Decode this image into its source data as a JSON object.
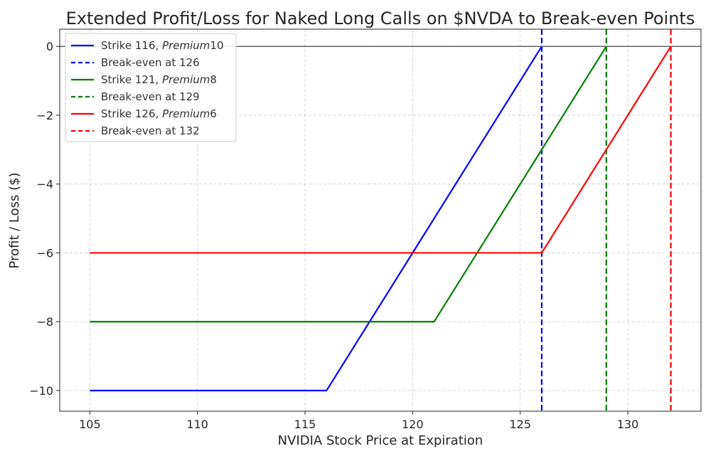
{
  "chart_data": {
    "type": "line",
    "title": "Extended Profit/Loss for Naked Long Calls on $NVDA to Break-even Points",
    "xlabel": "NVIDIA Stock Price at Expiration",
    "ylabel": "Profit / Loss ($)",
    "xlim": [
      103.6,
      133.4
    ],
    "ylim": [
      -10.6,
      0.5
    ],
    "xticks": [
      105,
      110,
      115,
      120,
      125,
      130
    ],
    "yticks": [
      0,
      -2,
      -4,
      -6,
      -8,
      -10
    ],
    "xtick_labels": [
      "105",
      "110",
      "115",
      "120",
      "125",
      "130"
    ],
    "ytick_labels": [
      "0",
      "−2",
      "−4",
      "−6",
      "−8",
      "−10"
    ],
    "grid": true,
    "legend_position": "top-left",
    "zero_line": 0,
    "series": [
      {
        "name": "Strike 116, Premium 10",
        "legend_prefix": "Strike 116, ",
        "legend_italic": "Premium",
        "legend_suffix": "10",
        "color": "#0000ff",
        "style": "solid",
        "x": [
          105,
          116,
          126
        ],
        "y": [
          -10,
          -10,
          0
        ]
      },
      {
        "name": "Break-even at 126",
        "legend_prefix": "Break-even at 126",
        "color": "#0000ff",
        "style": "dashed",
        "vline": 126
      },
      {
        "name": "Strike 121, Premium 8",
        "legend_prefix": "Strike 121, ",
        "legend_italic": "Premium",
        "legend_suffix": "8",
        "color": "#008000",
        "style": "solid",
        "x": [
          105,
          121,
          129
        ],
        "y": [
          -8,
          -8,
          0
        ]
      },
      {
        "name": "Break-even at 129",
        "legend_prefix": "Break-even at 129",
        "color": "#008000",
        "style": "dashed",
        "vline": 129
      },
      {
        "name": "Strike 126, Premium 6",
        "legend_prefix": "Strike 126, ",
        "legend_italic": "Premium",
        "legend_suffix": "6",
        "color": "#ff0000",
        "style": "solid",
        "x": [
          105,
          126,
          132
        ],
        "y": [
          -6,
          -6,
          0
        ]
      },
      {
        "name": "Break-even at 132",
        "legend_prefix": "Break-even at 132",
        "color": "#ff0000",
        "style": "dashed",
        "vline": 132
      }
    ]
  }
}
